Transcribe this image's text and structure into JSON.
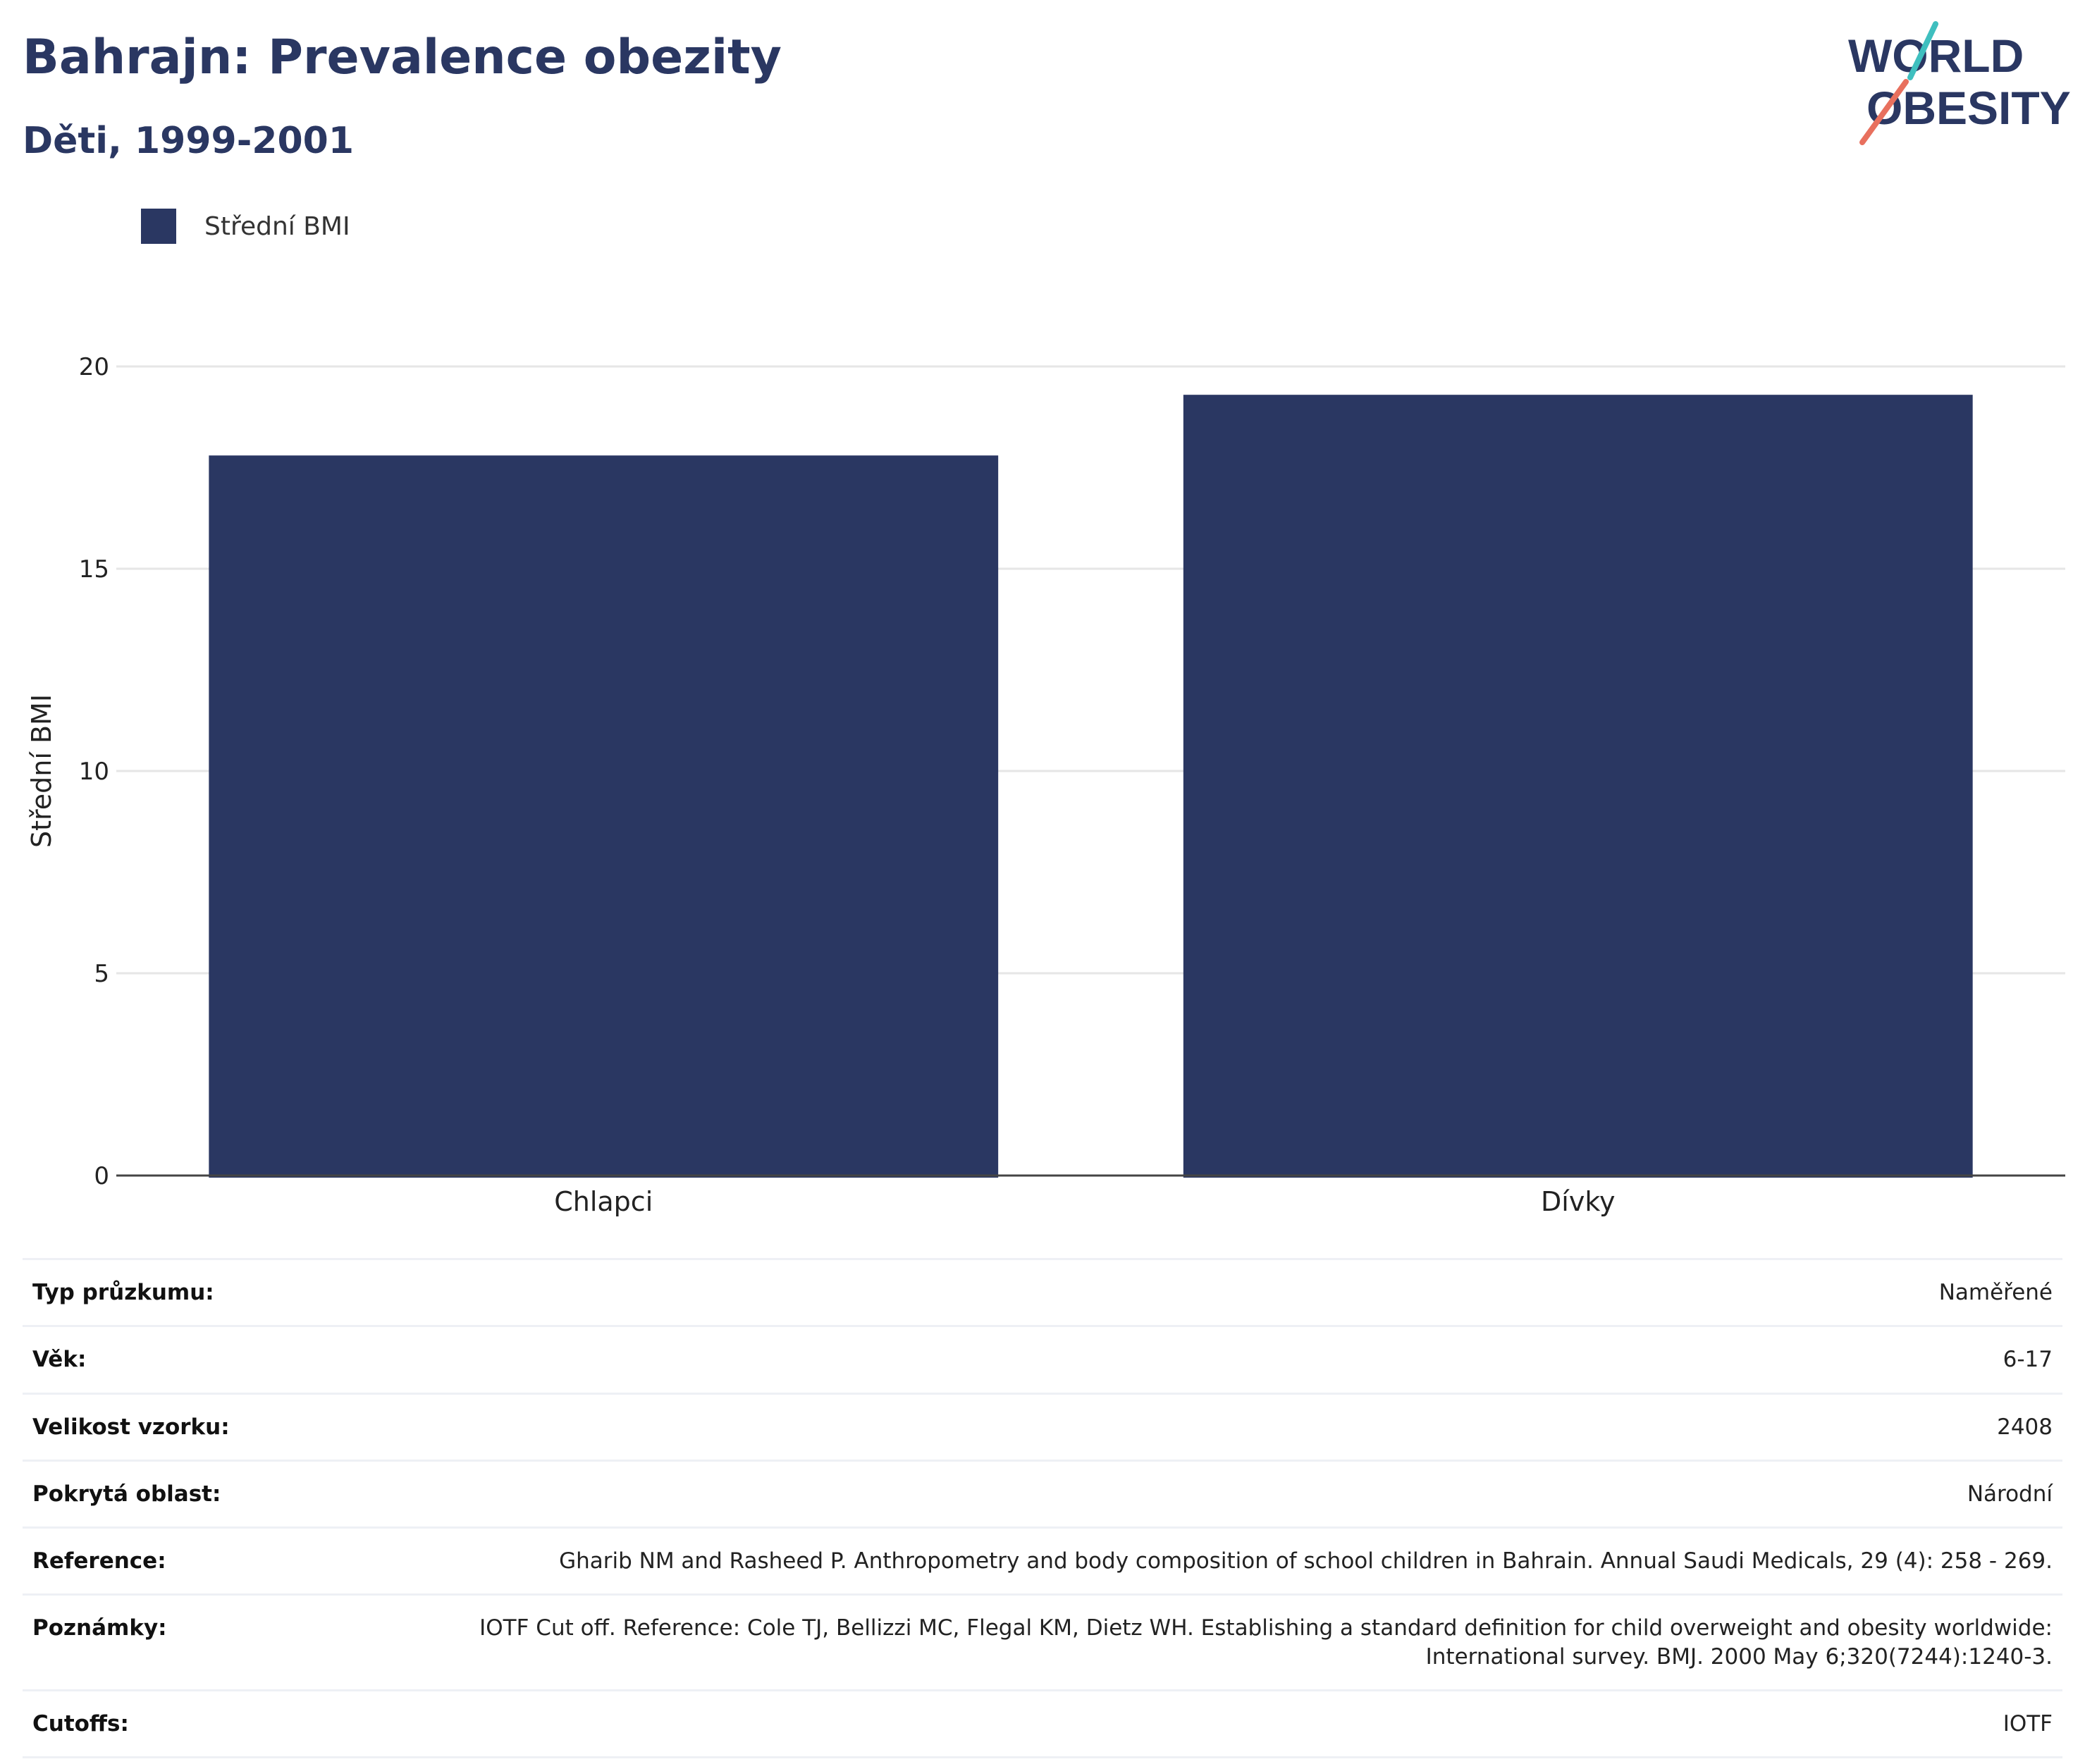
{
  "header": {
    "title": "Bahrajn: Prevalence obezity",
    "subtitle": "Děti, 1999-2001"
  },
  "logo": {
    "line1": "WORLD",
    "line2": "OBESITY"
  },
  "legend": {
    "label": "Střední BMI"
  },
  "colors": {
    "bar": "#2a3762",
    "title": "#2a3762",
    "logo_teal": "#3fbfbf",
    "logo_coral": "#e8705e"
  },
  "chart_data": {
    "type": "bar",
    "categories": [
      "Chlapci",
      "Dívky"
    ],
    "series": [
      {
        "name": "Střední BMI",
        "values": [
          17.8,
          19.3
        ]
      }
    ],
    "ylabel": "Střední BMI",
    "xlabel": "",
    "ylim": [
      0,
      20
    ],
    "yticks": [
      0,
      5,
      10,
      15,
      20
    ],
    "grid": true,
    "legend_position": "top-left"
  },
  "info": {
    "survey_type_label": "Typ průzkumu:",
    "survey_type": "Naměřené",
    "age_label": "Věk:",
    "age": "6-17",
    "sample_size_label": "Velikost vzorku:",
    "sample_size": "2408",
    "area_label": "Pokrytá oblast:",
    "area": "Národní",
    "reference_label": "Reference:",
    "reference": "Gharib NM and Rasheed P. Anthropometry and body composition of school children in Bahrain. Annual Saudi Medicals, 29 (4): 258 - 269.",
    "notes_label": "Poznámky:",
    "notes": "IOTF Cut off. Reference: Cole TJ, Bellizzi MC, Flegal KM, Dietz WH. Establishing a standard definition for child overweight and obesity worldwide: International survey. BMJ. 2000 May 6;320(7244):1240-3.",
    "cutoffs_label": "Cutoffs:",
    "cutoffs": "IOTF"
  }
}
